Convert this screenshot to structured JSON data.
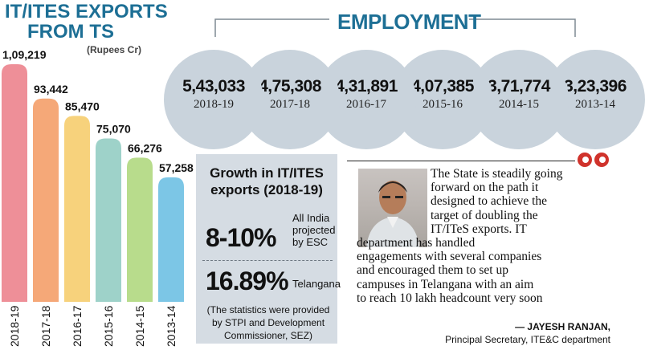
{
  "exports": {
    "title_line1": "IT/ITES EXPORTS",
    "title_line2": "FROM TS",
    "unit": "(Rupees Cr)"
  },
  "employment": {
    "title": "EMPLOYMENT"
  },
  "growth": {
    "title_line1": "Growth in IT/ITES",
    "title_line2": "exports (2018-19)",
    "all_india_value": "8-10%",
    "all_india_label": "All India projected by ESC",
    "telangana_value": "16.89%",
    "telangana_label": "Telangana",
    "note": "(The statistics were provided by STPI and Development Commissioner, SEZ)"
  },
  "quote": {
    "lines_indented": [
      "The State is steadily going",
      "forward on the path it",
      "designed to achieve the",
      "target of doubling the",
      "IT/ITeS exports. IT"
    ],
    "lines_full": [
      "department has handled",
      "engagements with several companies",
      "and encouraged them to set up",
      "campuses in Telangana with an aim",
      "to reach 10 lakh headcount very soon"
    ],
    "author": "— JAYESH RANJAN,",
    "role": "Principal Secretary, ITE&C department"
  },
  "chart_data": [
    {
      "type": "bar",
      "title": "IT/ITES EXPORTS FROM TS",
      "ylabel": "(Rupees Cr)",
      "categories": [
        "2018-19",
        "2017-18",
        "2016-17",
        "2015-16",
        "2014-15",
        "2013-14"
      ],
      "values": [
        109219,
        93442,
        85470,
        75070,
        66276,
        57258
      ],
      "value_labels": [
        "1,09,219",
        "93,442",
        "85,470",
        "75,070",
        "66,276",
        "57,258"
      ],
      "colors": [
        "#ee8f98",
        "#f5a878",
        "#f7d27c",
        "#9ed2c9",
        "#b8dc8c",
        "#7cc6e6"
      ],
      "ylim": [
        0,
        109219
      ]
    },
    {
      "type": "bubble",
      "title": "EMPLOYMENT",
      "categories": [
        "2018-19",
        "2017-18",
        "2016-17",
        "2015-16",
        "2014-15",
        "2013-14"
      ],
      "values": [
        543033,
        475308,
        431891,
        407385,
        371774,
        323396
      ],
      "value_labels": [
        "5,43,033",
        "4,75,308",
        "4,31,891",
        "4,07,385",
        "3,71,774",
        "3,23,396"
      ]
    }
  ]
}
